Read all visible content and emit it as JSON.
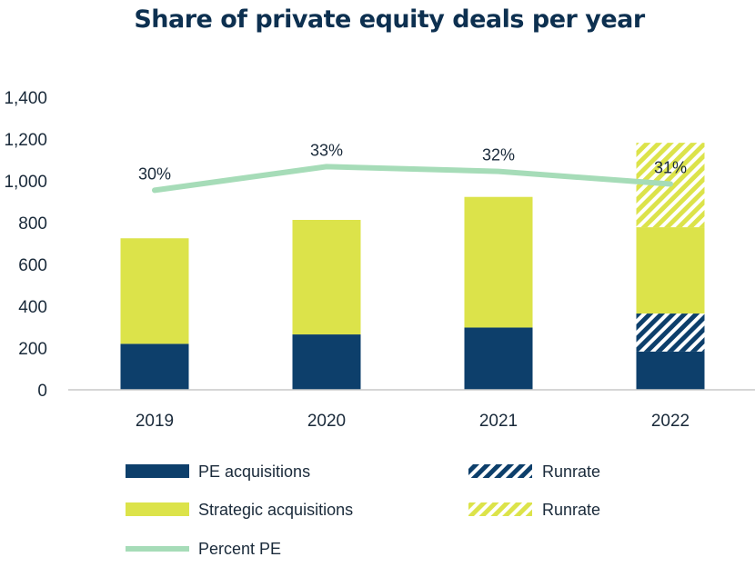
{
  "chart_data": {
    "type": "bar",
    "stacked": true,
    "title": "Share of private equity deals per year",
    "categories": [
      "2019",
      "2020",
      "2021",
      "2022"
    ],
    "ylim": [
      0,
      1400
    ],
    "yticks": [
      "0",
      "200",
      "400",
      "600",
      "800",
      "1,000",
      "1,200",
      "1,400"
    ],
    "ytick_values": [
      0,
      200,
      400,
      600,
      800,
      1000,
      1200,
      1400
    ],
    "grid": false,
    "series": [
      {
        "key": "pe",
        "name": "PE acquisitions",
        "values": [
          220,
          265,
          298,
          183
        ],
        "color": "#0d3f6b"
      },
      {
        "key": "pe_run",
        "name": "Runrate",
        "values": [
          0,
          0,
          0,
          182
        ],
        "color": "#0d3f6b",
        "pattern": "hatch"
      },
      {
        "key": "strat",
        "name": "Strategic acquisitions",
        "values": [
          505,
          548,
          625,
          413
        ],
        "color": "#dce34a"
      },
      {
        "key": "strat_run",
        "name": "Runrate",
        "values": [
          0,
          0,
          0,
          404
        ],
        "color": "#dce34a",
        "pattern": "hatch"
      }
    ],
    "line": {
      "name": "Percent PE",
      "color": "#a6dcb8",
      "values": [
        955,
        1068,
        1045,
        985
      ],
      "labels": [
        "30%",
        "33%",
        "32%",
        "31%"
      ]
    },
    "legend_placement": "bottom"
  }
}
